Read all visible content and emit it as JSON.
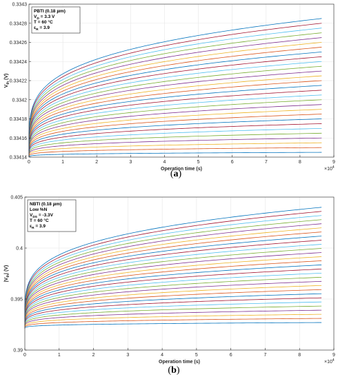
{
  "chart_data": [
    {
      "id": "a",
      "type": "line",
      "caption": "(a)",
      "caption_letter": "a",
      "xlabel": "Operation time (s)",
      "ylabel": "Vth (V)",
      "ylabel_main": "V",
      "ylabel_sub": "th",
      "ylabel_unit": " (V)",
      "xlim": [
        0,
        90000
      ],
      "ylim": [
        0.33414,
        0.3343
      ],
      "x_exponent": "4",
      "x_ticks": [
        0,
        1,
        2,
        3,
        4,
        5,
        6,
        7,
        8,
        9
      ],
      "y_ticks": [
        "0.33414",
        "0.33416",
        "0.33418",
        "0.3342",
        "0.33422",
        "0.33424",
        "0.33426",
        "0.33428",
        "0.3343"
      ],
      "grid": true,
      "info_lines": [
        {
          "main": "PBTI (0.18 ",
          "mu": "μ",
          "after": "m)"
        },
        {
          "main": "V",
          "sub": "D",
          "after": " = 3.3 V"
        },
        {
          "main": "T = 60 °C"
        },
        {
          "main": "ε",
          "sub": "R",
          "after": " = 3.9"
        }
      ],
      "x_end": 86400,
      "series_count": 29,
      "series_start": [
        0.33414,
        0.334146
      ],
      "series_end": [
        0.334145,
        0.334285
      ],
      "colors": [
        "#0072bd",
        "#d95319",
        "#edb120",
        "#7e2f8e",
        "#77ac30",
        "#4dbeee",
        "#a2142f"
      ]
    },
    {
      "id": "b",
      "type": "line",
      "caption": "(b)",
      "caption_letter": "b",
      "xlabel": "Operation time (s)",
      "ylabel": "|Vth| (V)",
      "ylabel_main": "|V",
      "ylabel_sub": "th",
      "ylabel_unit": "| (V)",
      "xlim": [
        0,
        90000
      ],
      "ylim": [
        0.39,
        0.405
      ],
      "x_exponent": "4",
      "x_ticks": [
        0,
        1,
        2,
        3,
        4,
        5,
        6,
        7,
        8,
        9
      ],
      "y_ticks": [
        "0.39",
        "0.395",
        "0.4",
        "0.405"
      ],
      "grid": true,
      "info_lines": [
        {
          "main": "NBTI (0.18 ",
          "mu": "μ",
          "after": "m)"
        },
        {
          "main": "Low %N"
        },
        {
          "main": "V",
          "sub": "DS",
          "after": " = -3.3V"
        },
        {
          "main": "T = 60 °C"
        },
        {
          "main": "ε",
          "sub": "R",
          "after": " = 3.9"
        }
      ],
      "x_end": 86400,
      "series_count": 29,
      "series_start": [
        0.3921,
        0.3928
      ],
      "series_end": [
        0.3927,
        0.404
      ],
      "colors": [
        "#0072bd",
        "#d95319",
        "#edb120",
        "#7e2f8e",
        "#77ac30",
        "#4dbeee",
        "#a2142f"
      ]
    }
  ]
}
